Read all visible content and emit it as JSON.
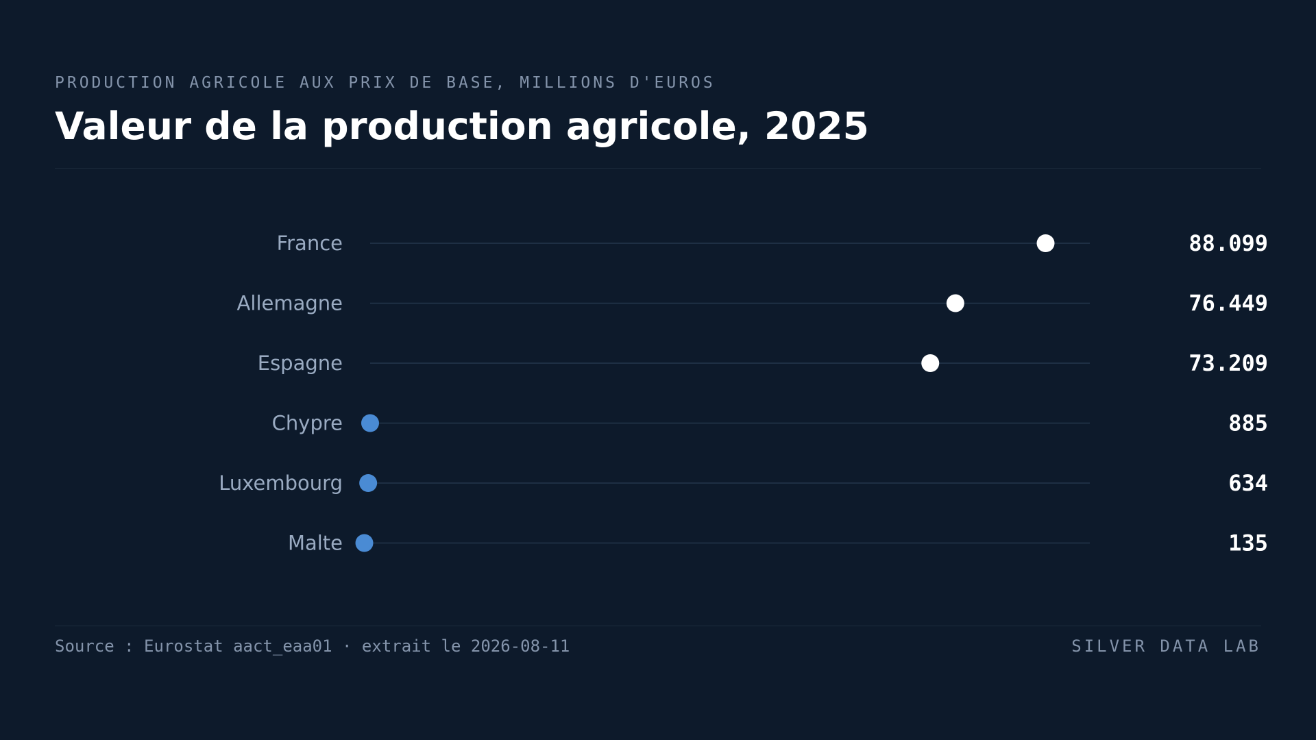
{
  "header": {
    "subtitle": "PRODUCTION AGRICOLE AUX PRIX DE BASE, MILLIONS D'EUROS",
    "title": "Valeur de la production agricole, 2025"
  },
  "footer": {
    "source": "Source : Eurostat aact_eaa01 · extrait le 2026-08-11",
    "brand": "SILVER DATA LAB"
  },
  "colors": {
    "background": "#0d1a2b",
    "track": "#24364c",
    "label": "#9aabc2",
    "value": "#ffffff",
    "high_dot": "#ffffff",
    "low_dot": "#4a8bd4"
  },
  "chart_data": {
    "type": "scatter",
    "orientation": "horizontal-dot-plot",
    "title": "Valeur de la production agricole, 2025",
    "subtitle": "PRODUCTION AGRICOLE AUX PRIX DE BASE, MILLIONS D'EUROS",
    "xlim": [
      0,
      100000
    ],
    "grid": false,
    "categories": [
      "France",
      "Allemagne",
      "Espagne",
      "Chypre",
      "Luxembourg",
      "Malte"
    ],
    "values": [
      88099,
      76449,
      73209,
      885,
      634,
      135
    ],
    "value_labels": [
      "88.099",
      "76.449",
      "73.209",
      "885",
      "634",
      "135"
    ],
    "groups": [
      "high",
      "high",
      "high",
      "low",
      "low",
      "low"
    ]
  }
}
